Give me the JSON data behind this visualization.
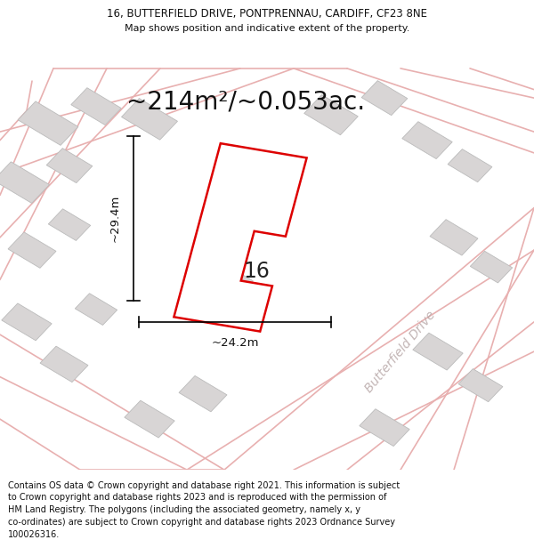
{
  "title_line1": "16, BUTTERFIELD DRIVE, PONTPRENNAU, CARDIFF, CF23 8NE",
  "title_line2": "Map shows position and indicative extent of the property.",
  "area_text": "~214m²/~0.053ac.",
  "property_label": "16",
  "dim_horizontal": "~24.2m",
  "dim_vertical": "~29.4m",
  "street_name": "Butterfield Drive",
  "footer_lines": [
    "Contains OS data © Crown copyright and database right 2021. This information is subject",
    "to Crown copyright and database rights 2023 and is reproduced with the permission of",
    "HM Land Registry. The polygons (including the associated geometry, namely x, y",
    "co-ordinates) are subject to Crown copyright and database rights 2023 Ordnance Survey",
    "100026316."
  ],
  "map_bg": "#f2f0f0",
  "road_color": "#e8b0b0",
  "building_color": "#d8d5d5",
  "building_edge": "#bbbbbb",
  "plot_color": "#dd0000",
  "title_fontsize": 8.5,
  "subtitle_fontsize": 8,
  "area_fontsize": 20,
  "label_fontsize": 17,
  "dim_fontsize": 9.5,
  "footer_fontsize": 7,
  "street_fontsize": 10
}
